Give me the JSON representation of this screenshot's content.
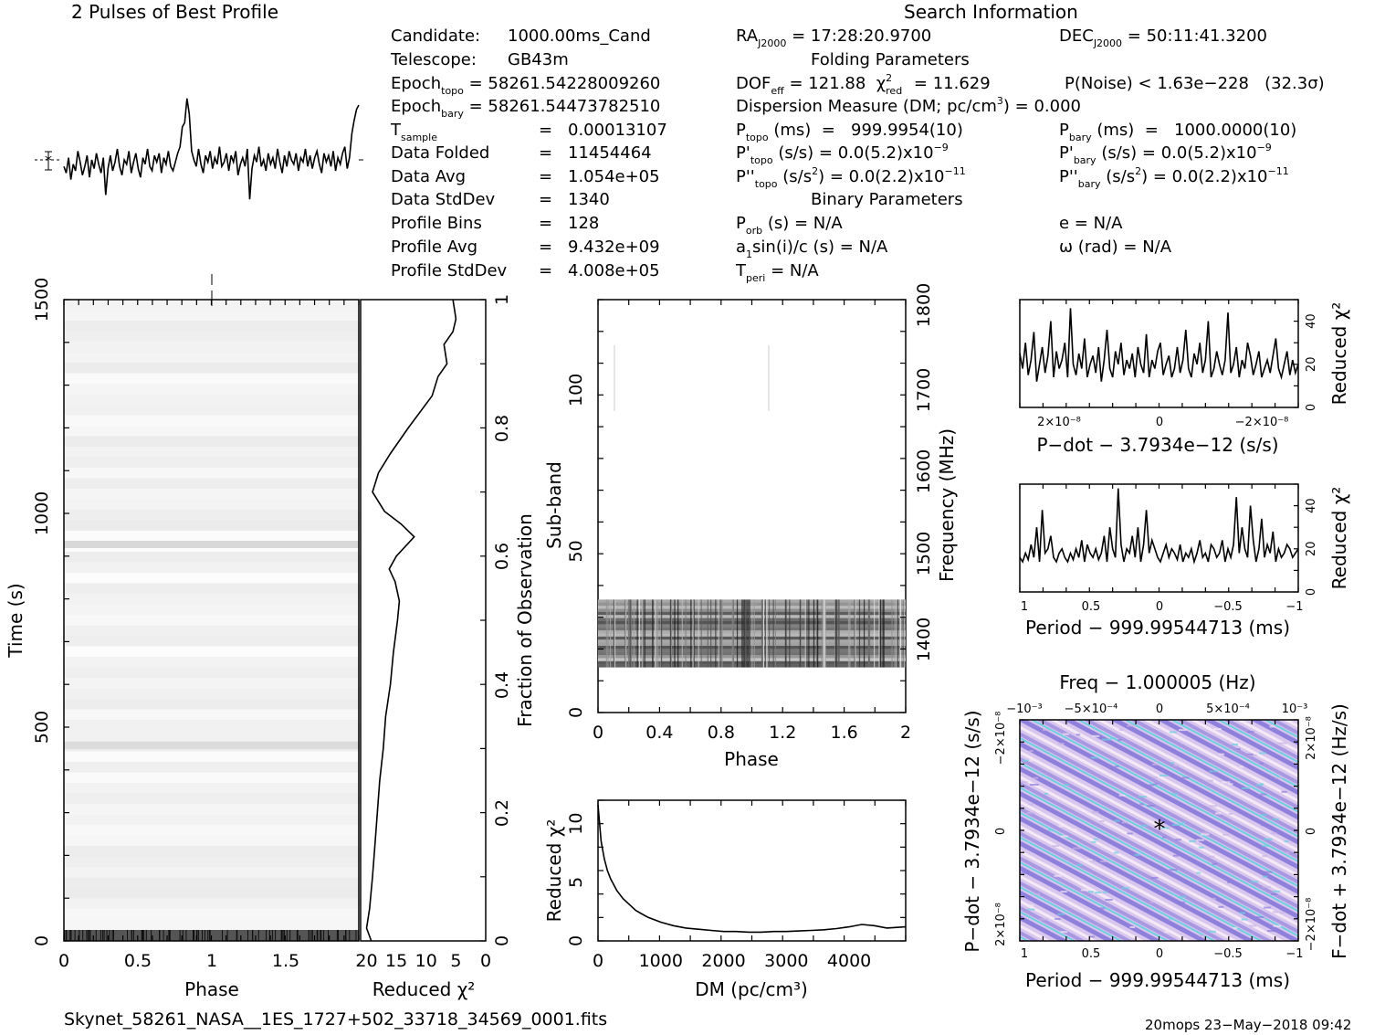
{
  "profile": {
    "title": "2 Pulses of Best Profile"
  },
  "search_info": {
    "title": "Search Information",
    "candidate_label": "Candidate:",
    "candidate_value": "1000.00ms_Cand",
    "telescope_label": "Telescope:",
    "telescope_value": "GB43m",
    "epoch_topo": "Epoch",
    "epoch_topo_sub": "topo",
    "epoch_topo_value": "= 58261.54228009260",
    "epoch_bary": "Epoch",
    "epoch_bary_sub": "bary",
    "epoch_bary_value": "= 58261.54473782510",
    "tsample_label": "T",
    "tsample_sub": "sample",
    "tsample_eq": "=",
    "tsample_value": "0.00013107",
    "data_folded_label": "Data Folded",
    "data_folded_value": "11454464",
    "data_avg_label": "Data Avg",
    "data_avg_value": "1.054e+05",
    "data_std_label": "Data StdDev",
    "data_std_value": "1340",
    "prof_bins_label": "Profile Bins",
    "prof_bins_value": "128",
    "prof_avg_label": "Profile Avg",
    "prof_avg_value": "9.432e+09",
    "prof_std_label": "Profile StdDev",
    "prof_std_value": "4.008e+05",
    "ra_label": "RA",
    "ra_sub": "J2000",
    "ra_value": "= 17:28:20.9700",
    "dec_label": "DEC",
    "dec_sub": "J2000",
    "dec_value": "= 50:11:41.3200",
    "folding_title": "Folding Parameters",
    "dof_text": "DOF",
    "dof_sub": "eff",
    "dof_value": "= 121.88",
    "chi_text": "χ",
    "chi_sup": "2",
    "chi_sub": "red",
    "chi_value": "= 11.629",
    "pnoise_text": "P(Noise) < 1.63e−228   (32.3σ)",
    "dm_text": "Dispersion Measure (DM; pc/cm",
    "dm_sup": "3",
    "dm_value": ") = 0.000",
    "ptopo_label": "P",
    "ptopo_sub": "topo",
    "ptopo_value": "(ms)  =   999.9954(10)",
    "pbary_label": "P",
    "pbary_sub": "bary",
    "pbary_value": "(ms)  =   1000.0000(10)",
    "pdtopo_label": "P'",
    "pdtopo_sub": "topo",
    "pdtopo_value": "(s/s) = 0.0(5.2)x10",
    "pdtopo_exp": "−9",
    "pdbary_label": "P'",
    "pdbary_sub": "bary",
    "pdbary_value": "(s/s) = 0.0(5.2)x10",
    "pdbary_exp": "−9",
    "pddtopo_label": "P''",
    "pddtopo_sub": "topo",
    "pddtopo_value": "(s/s",
    "pddtopo_value2": ") = 0.0(2.2)x10",
    "pddtopo_exp": "−11",
    "pddbary_label": "P''",
    "pddbary_sub": "bary",
    "pddbary_value": "(s/s",
    "pddbary_value2": ") = 0.0(2.2)x10",
    "pddbary_exp": "−11",
    "sq_sup": "2",
    "binary_title": "Binary Parameters",
    "porb_label": "P",
    "porb_sub": "orb",
    "porb_value": "(s) = N/A",
    "a1_text": "a",
    "a1_sub": "1",
    "a1_value": "sin(i)/c (s) = N/A",
    "tperi_label": "T",
    "tperi_sub": "peri",
    "tperi_value": "= N/A",
    "e_text": "e = N/A",
    "omega_text": "ω (rad) = N/A"
  },
  "footer": {
    "filename": "Skynet_58261_NASA__1ES_1727+502_33718_34569_0001.fits",
    "stamp": "20mops 23−May−2018 09:42"
  },
  "chart_data": [
    {
      "type": "line",
      "name": "pulse_profile",
      "title": "2 Pulses of Best Profile",
      "xlabel": "",
      "ylabel": "",
      "x_range": [
        0,
        2
      ],
      "values": [
        -0.3,
        -0.6,
        0.1,
        -0.9,
        -0.2,
        -0.5,
        0.4,
        -0.1,
        -0.7,
        -0.3,
        0.2,
        -0.8,
        0.0,
        -0.4,
        0.3,
        -0.2,
        -0.6,
        0.1,
        -1.6,
        -0.4,
        0.2,
        -0.5,
        -0.1,
        0.5,
        -0.3,
        -0.7,
        0.0,
        -0.2,
        0.4,
        -0.6,
        -0.1,
        0.3,
        -0.4,
        -0.8,
        0.1,
        -0.2,
        0.5,
        -0.3,
        -0.5,
        0.2,
        -0.1,
        0.3,
        -0.6,
        0.1,
        -0.2,
        0.4,
        -0.3,
        -0.5,
        -0.1,
        0.3,
        0.6,
        1.5,
        1.7,
        2.8,
        2.1,
        0.4,
        0.0,
        -0.3,
        0.5,
        -0.2,
        -0.6,
        0.2,
        -0.1,
        0.4,
        -0.4,
        0.1,
        -0.2,
        0.6,
        -0.3,
        -0.1,
        0.3,
        -0.5,
        0.2,
        -0.1,
        0.4,
        -0.7,
        -0.2,
        0.1,
        -0.3,
        0.5,
        -1.8,
        -0.4,
        0.2,
        -0.1,
        0.6,
        -0.3,
        0.0,
        -0.5,
        0.3,
        -0.2,
        0.1,
        -0.4,
        0.5,
        -0.1,
        -0.6,
        0.2,
        -0.3,
        0.4,
        0.0,
        -0.2,
        0.3,
        -0.5,
        0.1,
        -0.1,
        0.5,
        -0.3,
        0.2,
        -0.4,
        0.1,
        0.4,
        -0.2,
        -0.6,
        0.3,
        -0.1,
        0.2,
        -0.3,
        0.4,
        -0.5,
        0.1,
        -0.2,
        0.3,
        0.6,
        -0.4,
        0.1,
        1.2,
        1.8,
        2.3,
        2.5
      ],
      "y_tick_label": "*"
    },
    {
      "type": "heatmap",
      "name": "time_vs_phase",
      "xlabel": "Phase",
      "ylabel": "Time (s)",
      "x_range": [
        0,
        2
      ],
      "y_range": [
        0,
        1500
      ],
      "x_ticks": [
        "0",
        "0.5",
        "1",
        "1.5"
      ],
      "y_ticks": [
        "0",
        "500",
        "1000",
        "1500"
      ],
      "right_axis_label": "Fraction of Observation",
      "right_ticks": [
        "0",
        "0.2",
        "0.4",
        "0.6",
        "0.8",
        "1"
      ]
    },
    {
      "type": "line",
      "name": "reduced_chi2_vs_time",
      "xlabel": "Reduced χ²",
      "x_ticks": [
        "20",
        "15",
        "10",
        "5",
        "0"
      ],
      "x_range": [
        0,
        20
      ],
      "points": [
        [
          19.2,
          0.0
        ],
        [
          20.0,
          0.02
        ],
        [
          19.5,
          0.05
        ],
        [
          19.0,
          0.1
        ],
        [
          18.6,
          0.15
        ],
        [
          18.2,
          0.2
        ],
        [
          17.8,
          0.25
        ],
        [
          17.2,
          0.3
        ],
        [
          16.8,
          0.35
        ],
        [
          16.0,
          0.4
        ],
        [
          15.5,
          0.45
        ],
        [
          14.8,
          0.5
        ],
        [
          14.5,
          0.53
        ],
        [
          15.2,
          0.56
        ],
        [
          16.2,
          0.58
        ],
        [
          15.0,
          0.6
        ],
        [
          12.0,
          0.63
        ],
        [
          14.2,
          0.65
        ],
        [
          17.0,
          0.67
        ],
        [
          19.0,
          0.7
        ],
        [
          18.0,
          0.73
        ],
        [
          16.0,
          0.76
        ],
        [
          13.0,
          0.8
        ],
        [
          9.0,
          0.85
        ],
        [
          8.0,
          0.88
        ],
        [
          6.5,
          0.9
        ],
        [
          7.0,
          0.93
        ],
        [
          5.5,
          0.95
        ],
        [
          5.0,
          0.97
        ],
        [
          5.5,
          1.0
        ]
      ]
    },
    {
      "type": "heatmap",
      "name": "subband_vs_phase",
      "xlabel": "Phase",
      "ylabel": "Sub-band",
      "x_range": [
        0,
        2
      ],
      "y_range": [
        0,
        128
      ],
      "x_ticks": [
        "0",
        "0.4",
        "0.8",
        "1.2",
        "1.6",
        "2"
      ],
      "y_ticks": [
        "0",
        "50",
        "100"
      ],
      "right_axis_label": "Frequency (MHz)",
      "right_ticks": [
        "1400",
        "1500",
        "1600",
        "1700",
        "1800"
      ],
      "active_band": [
        14,
        35
      ]
    },
    {
      "type": "line",
      "name": "chi2_vs_dm",
      "xlabel": "DM (pc/cm³)",
      "ylabel": "Reduced χ²",
      "x_range": [
        0,
        4900
      ],
      "y_range": [
        0,
        12
      ],
      "x_ticks": [
        "0",
        "1000",
        "2000",
        "3000",
        "4000"
      ],
      "y_ticks": [
        "0",
        "5",
        "10"
      ],
      "points": [
        [
          0,
          11.6
        ],
        [
          50,
          8.5
        ],
        [
          100,
          7.0
        ],
        [
          150,
          6.0
        ],
        [
          200,
          5.3
        ],
        [
          300,
          4.3
        ],
        [
          400,
          3.6
        ],
        [
          500,
          3.1
        ],
        [
          600,
          2.6
        ],
        [
          700,
          2.3
        ],
        [
          800,
          2.0
        ],
        [
          900,
          1.8
        ],
        [
          1000,
          1.6
        ],
        [
          1200,
          1.3
        ],
        [
          1400,
          1.1
        ],
        [
          1600,
          1.0
        ],
        [
          1800,
          0.9
        ],
        [
          2000,
          0.8
        ],
        [
          2200,
          0.8
        ],
        [
          2400,
          0.75
        ],
        [
          2600,
          0.75
        ],
        [
          2800,
          0.8
        ],
        [
          3000,
          0.8
        ],
        [
          3200,
          0.85
        ],
        [
          3400,
          0.9
        ],
        [
          3600,
          0.95
        ],
        [
          3800,
          1.05
        ],
        [
          4000,
          1.2
        ],
        [
          4200,
          1.4
        ],
        [
          4400,
          1.3
        ],
        [
          4600,
          1.1
        ],
        [
          4900,
          1.2
        ]
      ]
    },
    {
      "type": "line",
      "name": "chi2_vs_pdot",
      "xlabel": "P−dot − 3.7934e−12 (s/s)",
      "ylabel": "Reduced χ²",
      "x_ticks": [
        "2×10⁻⁸",
        "0",
        "−2×10⁻⁸"
      ],
      "y_ticks": [
        "0",
        "20",
        "40"
      ],
      "y_range": [
        0,
        50
      ],
      "values": [
        25,
        18,
        30,
        15,
        22,
        35,
        12,
        20,
        28,
        16,
        24,
        40,
        14,
        26,
        18,
        22,
        30,
        14,
        46,
        20,
        15,
        25,
        18,
        32,
        14,
        20,
        24,
        16,
        28,
        12,
        22,
        36,
        18,
        14,
        26,
        20,
        30,
        15,
        22,
        18,
        25,
        14,
        28,
        20,
        16,
        34,
        14,
        22,
        18,
        26,
        30,
        15,
        20,
        24,
        14,
        18,
        28,
        16,
        22,
        36,
        18,
        14,
        25,
        20,
        30,
        16,
        22,
        40,
        14,
        18,
        26,
        20,
        15,
        22,
        44,
        16,
        20,
        28,
        14,
        22,
        18,
        30,
        24,
        15,
        20,
        26,
        14,
        18,
        22,
        16,
        24,
        32,
        18,
        14,
        20,
        26,
        15,
        22,
        16,
        20
      ],
      "y_label_right": "Reduced χ²"
    },
    {
      "type": "line",
      "name": "chi2_vs_period",
      "xlabel": "Period − 999.99544713 (ms)",
      "ylabel": "Reduced χ²",
      "x_ticks": [
        "1",
        "0.5",
        "0",
        "−0.5",
        "−1"
      ],
      "y_ticks": [
        "0",
        "20",
        "40"
      ],
      "y_range": [
        0,
        50
      ],
      "values": [
        16,
        14,
        18,
        15,
        22,
        16,
        30,
        14,
        38,
        18,
        20,
        26,
        16,
        14,
        18,
        20,
        16,
        14,
        18,
        15,
        20,
        16,
        24,
        14,
        22,
        18,
        16,
        20,
        15,
        18,
        26,
        14,
        30,
        20,
        16,
        48,
        22,
        14,
        20,
        18,
        26,
        16,
        30,
        14,
        22,
        38,
        18,
        24,
        20,
        16,
        14,
        18,
        22,
        16,
        20,
        18,
        15,
        22,
        14,
        18,
        16,
        20,
        14,
        18,
        24,
        16,
        18,
        14,
        22,
        20,
        16,
        18,
        24,
        14,
        20,
        16,
        22,
        44,
        18,
        30,
        20,
        16,
        40,
        24,
        14,
        20,
        34,
        16,
        22,
        18,
        28,
        14,
        20,
        16,
        18,
        22,
        20,
        16,
        18,
        20
      ],
      "y_label_right": "Reduced χ²"
    },
    {
      "type": "heatmap",
      "name": "period_pdot_plane",
      "title": "Freq − 1.000005 (Hz)",
      "xlabel": "Period − 999.99544713 (ms)",
      "ylabel": "P−dot − 3.7934e−12 (s/s)",
      "right_axis_label": "F−dot + 3.7934e−12 (Hz/s)",
      "x_ticks": [
        "1",
        "0.5",
        "0",
        "−0.5",
        "−1"
      ],
      "top_ticks": [
        "−10⁻³",
        "−5×10⁻⁴",
        "0",
        "5×10⁻⁴",
        "10⁻³"
      ],
      "y_ticks": [
        "2×10⁻⁸",
        "0",
        "−2×10⁻⁸"
      ],
      "right_ticks": [
        "−2×10⁻⁸",
        "0",
        "2×10⁻⁸"
      ],
      "colors": [
        "#f4e6f4",
        "#c9b4e6",
        "#8f7fdc",
        "#6bd0e0"
      ]
    }
  ]
}
